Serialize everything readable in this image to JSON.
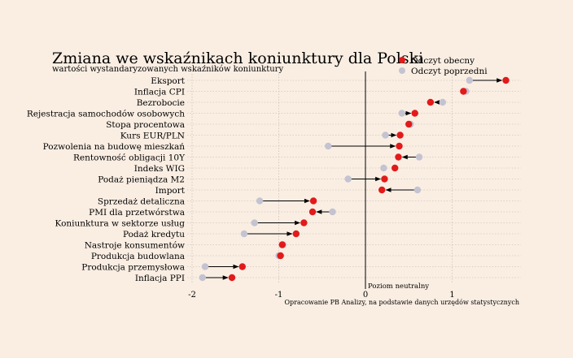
{
  "chart_data": {
    "type": "dot-arrow",
    "title": "Zmiana we wskaźnikach koniunktury dla Polski",
    "subtitle": "wartości wystandaryzowanych wskaźników koniunktury",
    "xlim": [
      -2,
      1.8
    ],
    "xticks": [
      -2,
      -1,
      0,
      1
    ],
    "xtick_labels": [
      "-2",
      "-1",
      "0",
      "1"
    ],
    "neutral_label": "Poziom neutralny",
    "source_note": "Opracowanie PB Analizy, na podstawie danych urzędów statystycznych",
    "legend": {
      "position": "top-right",
      "current": "Odczyt obecny",
      "previous": "Odczyt poprzedni"
    },
    "colors": {
      "current": "#e21a1a",
      "previous": "#c3c3d1",
      "arrow": "#000000",
      "background": "#faeee3"
    },
    "categories": [
      "Eksport",
      "Inflacja CPI",
      "Bezrobocie",
      "Rejestracja samochodów osobowych",
      "Stopa procentowa",
      "Kurs EUR/PLN",
      "Pozwolenia na budowę mieszkań",
      "Rentowność obligacji 10Y",
      "Indeks WIG",
      "Podaż pieniądza M2",
      "Import",
      "Sprzedaż detaliczna",
      "PMI dla przetwórstwa",
      "Koniunktura w sektorze usług",
      "Podaż kredytu",
      "Nastroje konsumentów",
      "Produkcja budowlana",
      "Produkcja przemysłowa",
      "Inflacja PPI"
    ],
    "series": [
      {
        "name": "Odczyt obecny",
        "values": [
          1.62,
          1.13,
          0.75,
          0.57,
          0.5,
          0.4,
          0.39,
          0.38,
          0.34,
          0.22,
          0.19,
          -0.6,
          -0.61,
          -0.71,
          -0.8,
          -0.96,
          -0.98,
          -1.42,
          -1.54
        ]
      },
      {
        "name": "Odczyt poprzedni",
        "values": [
          1.2,
          1.16,
          0.89,
          0.42,
          0.52,
          0.23,
          -0.43,
          0.62,
          0.21,
          -0.2,
          0.6,
          -1.22,
          -0.38,
          -1.28,
          -1.4,
          -0.95,
          -1.0,
          -1.85,
          -1.88
        ]
      }
    ]
  }
}
